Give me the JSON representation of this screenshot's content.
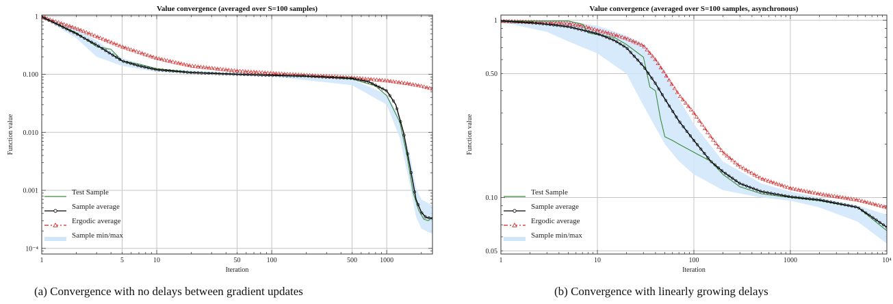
{
  "captions": {
    "a": "(a)  Convergence with no delays between gradient updates",
    "b": "(b)  Convergence with linearly growing delays"
  },
  "chart_data": [
    {
      "type": "line",
      "title": "Value convergence (averaged over S=100 samples)",
      "xlabel": "Iteration",
      "ylabel": "Function value",
      "xscale": "log",
      "yscale": "log",
      "xlim": [
        1,
        2500
      ],
      "ylim": [
        8e-05,
        1.05
      ],
      "grid": true,
      "legend_position": "bottom-left",
      "xticks": [
        {
          "v": 1,
          "label": "1"
        },
        {
          "v": 5,
          "label": "5"
        },
        {
          "v": 10,
          "label": "10"
        },
        {
          "v": 50,
          "label": "50"
        },
        {
          "v": 100,
          "label": "100"
        },
        {
          "v": 500,
          "label": "500"
        },
        {
          "v": 1000,
          "label": "1000"
        }
      ],
      "yticks": [
        {
          "v": 1,
          "label": "1"
        },
        {
          "v": 0.1,
          "label": "0.100"
        },
        {
          "v": 0.01,
          "label": "0.010"
        },
        {
          "v": 0.001,
          "label": "0.001"
        },
        {
          "v": 0.0001,
          "label": "10⁻⁴"
        }
      ],
      "series": [
        {
          "name": "Sample min/max",
          "kind": "band",
          "color": "#cfe6fb",
          "x": [
            1,
            2,
            3,
            5,
            10,
            50,
            100,
            500,
            1000,
            1300,
            1600,
            1800,
            2000,
            2300,
            2500
          ],
          "lower": [
            0.96,
            0.42,
            0.2,
            0.14,
            0.11,
            0.097,
            0.092,
            0.065,
            0.03,
            0.008,
            0.0012,
            0.00035,
            0.00022,
            0.00019,
            0.00018
          ],
          "upper": [
            1.0,
            0.62,
            0.38,
            0.19,
            0.125,
            0.104,
            0.1,
            0.082,
            0.045,
            0.018,
            0.004,
            0.0011,
            0.0007,
            0.0006,
            0.00055
          ]
        },
        {
          "name": "Test Sample",
          "kind": "line",
          "color": "#3a8a3a",
          "x": [
            1,
            2,
            3,
            4,
            5,
            7,
            10,
            20,
            50,
            100,
            300,
            500,
            800,
            1000,
            1300,
            1500,
            1700,
            1900,
            2100,
            2300,
            2500
          ],
          "y": [
            0.98,
            0.52,
            0.3,
            0.27,
            0.17,
            0.15,
            0.125,
            0.108,
            0.1,
            0.096,
            0.09,
            0.083,
            0.063,
            0.043,
            0.015,
            0.004,
            0.0009,
            0.00045,
            0.00032,
            0.0003,
            0.00034
          ]
        },
        {
          "name": "Sample average",
          "kind": "line",
          "color": "#000000",
          "marker": "circle",
          "x": [
            1,
            2,
            3,
            5,
            7,
            10,
            20,
            50,
            100,
            200,
            500,
            700,
            1000,
            1200,
            1400,
            1600,
            1800,
            2000,
            2200,
            2500
          ],
          "y": [
            0.98,
            0.5,
            0.32,
            0.17,
            0.14,
            0.12,
            0.107,
            0.1,
            0.096,
            0.093,
            0.085,
            0.074,
            0.052,
            0.03,
            0.01,
            0.0025,
            0.0007,
            0.00042,
            0.00034,
            0.00033
          ]
        },
        {
          "name": "Ergodic average",
          "kind": "line",
          "color": "#d22020",
          "marker": "triangle",
          "dash": "6,3,2,3",
          "x": [
            1,
            2,
            3,
            5,
            10,
            20,
            50,
            100,
            200,
            500,
            1000,
            1500,
            2000,
            2500
          ],
          "y": [
            0.98,
            0.62,
            0.45,
            0.3,
            0.19,
            0.14,
            0.115,
            0.105,
            0.097,
            0.088,
            0.078,
            0.07,
            0.063,
            0.056
          ]
        }
      ]
    },
    {
      "type": "line",
      "title": "Value convergence (averaged over S=100 samples, asynchronous)",
      "xlabel": "Iteration",
      "ylabel": "Function value",
      "xscale": "log",
      "yscale": "log",
      "xlim": [
        1,
        10000
      ],
      "ylim": [
        0.048,
        1.07
      ],
      "grid": true,
      "legend_position": "bottom-left",
      "xticks": [
        {
          "v": 1,
          "label": "1"
        },
        {
          "v": 10,
          "label": "10"
        },
        {
          "v": 100,
          "label": "100"
        },
        {
          "v": 1000,
          "label": "1000"
        },
        {
          "v": 10000,
          "label": "10⁴"
        }
      ],
      "yticks": [
        {
          "v": 1,
          "label": "1"
        },
        {
          "v": 0.5,
          "label": "0.50"
        },
        {
          "v": 0.1,
          "label": "0.10"
        },
        {
          "v": 0.05,
          "label": "0.05"
        }
      ],
      "series": [
        {
          "name": "Sample min/max",
          "kind": "band",
          "color": "#cfe6fb",
          "x": [
            1,
            3,
            5,
            10,
            20,
            30,
            50,
            70,
            100,
            200,
            500,
            1000,
            2000,
            5000,
            10000
          ],
          "lower": [
            0.98,
            0.86,
            0.76,
            0.65,
            0.5,
            0.33,
            0.2,
            0.16,
            0.135,
            0.11,
            0.1,
            0.096,
            0.088,
            0.073,
            0.055
          ],
          "upper": [
            1.0,
            1.0,
            0.99,
            0.93,
            0.82,
            0.73,
            0.52,
            0.36,
            0.26,
            0.16,
            0.12,
            0.108,
            0.1,
            0.09,
            0.08
          ]
        },
        {
          "name": "Test Sample",
          "kind": "line",
          "color": "#3a8a3a",
          "x": [
            1,
            3,
            5,
            7,
            8,
            10,
            15,
            20,
            30,
            35,
            40,
            45,
            50,
            60,
            70,
            100,
            150,
            200,
            300,
            500,
            1000,
            2000,
            5000,
            10000
          ],
          "y": [
            0.99,
            0.99,
            0.99,
            0.95,
            0.85,
            0.83,
            0.8,
            0.73,
            0.62,
            0.42,
            0.4,
            0.28,
            0.22,
            0.21,
            0.2,
            0.18,
            0.16,
            0.135,
            0.115,
            0.105,
            0.1,
            0.096,
            0.088,
            0.065
          ]
        },
        {
          "name": "Sample average",
          "kind": "line",
          "color": "#000000",
          "marker": "circle",
          "x": [
            1,
            2,
            3,
            5,
            10,
            15,
            20,
            30,
            40,
            50,
            70,
            100,
            150,
            200,
            300,
            500,
            1000,
            2000,
            5000,
            10000
          ],
          "y": [
            0.99,
            0.97,
            0.95,
            0.92,
            0.84,
            0.77,
            0.7,
            0.55,
            0.44,
            0.36,
            0.27,
            0.21,
            0.16,
            0.14,
            0.12,
            0.108,
            0.101,
            0.097,
            0.088,
            0.068
          ]
        },
        {
          "name": "Ergodic average",
          "kind": "line",
          "color": "#d22020",
          "marker": "triangle",
          "dash": "6,3,2,3",
          "x": [
            1,
            2,
            3,
            5,
            7,
            10,
            15,
            20,
            30,
            40,
            50,
            70,
            100,
            150,
            200,
            300,
            500,
            1000,
            2000,
            5000,
            10000
          ],
          "y": [
            0.99,
            0.98,
            0.97,
            0.96,
            0.93,
            0.88,
            0.83,
            0.79,
            0.72,
            0.6,
            0.5,
            0.38,
            0.3,
            0.22,
            0.18,
            0.15,
            0.128,
            0.113,
            0.105,
            0.097,
            0.088
          ]
        }
      ]
    }
  ]
}
